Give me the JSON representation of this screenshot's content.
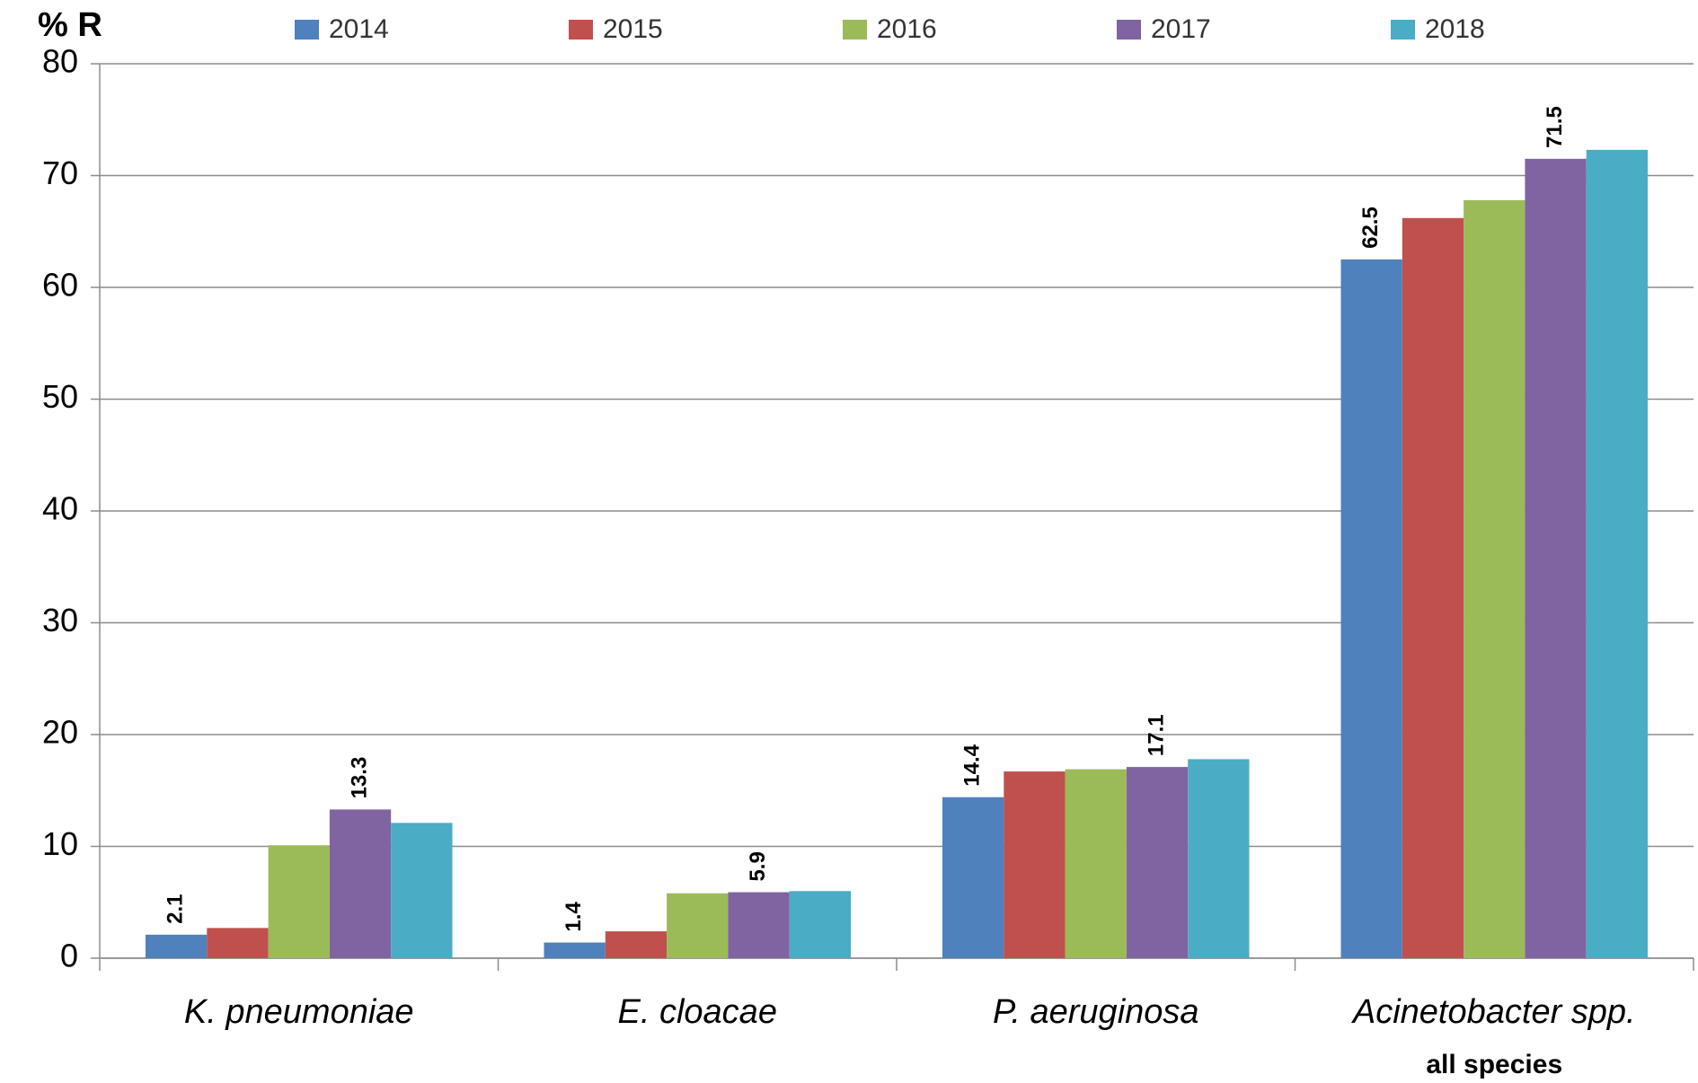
{
  "chart_data": {
    "type": "bar",
    "y_axis_label": "% R",
    "categories": [
      "K. pneumoniae",
      "E. cloacae",
      "P. aeruginosa",
      "Acinetobacter spp."
    ],
    "category_sublabels": [
      null,
      null,
      null,
      "all species"
    ],
    "series": [
      {
        "name": "2014",
        "color": "#4f81bd",
        "values": [
          2.1,
          1.4,
          14.4,
          62.5
        ],
        "show_labels": true
      },
      {
        "name": "2015",
        "color": "#c0504d",
        "values": [
          2.7,
          2.4,
          16.7,
          66.2
        ],
        "show_labels": false
      },
      {
        "name": "2016",
        "color": "#9bbb59",
        "values": [
          10.1,
          5.8,
          16.9,
          67.8
        ],
        "show_labels": false
      },
      {
        "name": "2017",
        "color": "#8064a2",
        "values": [
          13.3,
          5.9,
          17.1,
          71.5
        ],
        "show_labels": true
      },
      {
        "name": "2018",
        "color": "#4bacc6",
        "values": [
          12.1,
          6.0,
          17.8,
          72.3
        ],
        "show_labels": false
      }
    ],
    "ylim": [
      0,
      80
    ],
    "yticks": [
      0,
      10,
      20,
      30,
      40,
      50,
      60,
      70,
      80
    ],
    "grid": true,
    "legend": "top"
  }
}
